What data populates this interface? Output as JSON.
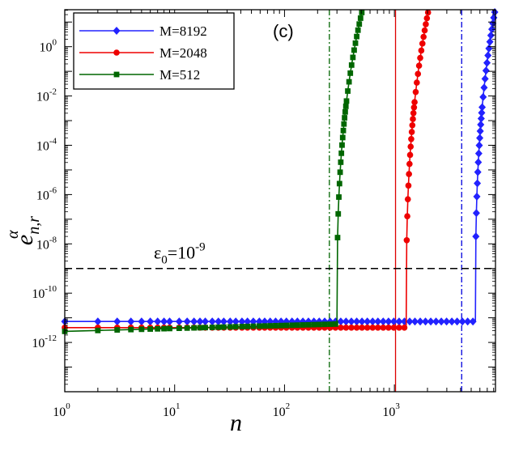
{
  "chart_data": {
    "type": "line",
    "panel_label": "(c)",
    "xlabel": "n",
    "ylabel": {
      "base": "e",
      "sub": "n,r",
      "sup": "α"
    },
    "xscale": "log",
    "yscale": "log",
    "xlim_exp": [
      0,
      3.92
    ],
    "ylim_exp": [
      -14,
      1.5
    ],
    "x_ticks": [
      {
        "base": "10",
        "exp": "0",
        "value": 1
      },
      {
        "base": "10",
        "exp": "1",
        "value": 10
      },
      {
        "base": "10",
        "exp": "2",
        "value": 100
      },
      {
        "base": "10",
        "exp": "3",
        "value": 1000
      }
    ],
    "y_ticks": [
      {
        "base": "10",
        "exp": "0",
        "value": 1
      },
      {
        "base": "10",
        "exp": "-2",
        "value": 0.01
      },
      {
        "base": "10",
        "exp": "-4",
        "value": 0.0001
      },
      {
        "base": "10",
        "exp": "-6",
        "value": 1e-06
      },
      {
        "base": "10",
        "exp": "-8",
        "value": 1e-08
      },
      {
        "base": "10",
        "exp": "-10",
        "value": 1e-10
      },
      {
        "base": "10",
        "exp": "-12",
        "value": 1e-12
      }
    ],
    "threshold": {
      "value": 1e-09,
      "label": {
        "base": "ε",
        "sub": "0",
        "eq": "=10",
        "exp": "-9"
      }
    },
    "vertical_lines": [
      {
        "x": 256,
        "color": "#006400",
        "style": "dashdot",
        "series": "M=512"
      },
      {
        "x": 1024,
        "color": "#dd0000",
        "style": "solid",
        "series": "M=2048"
      },
      {
        "x": 4096,
        "color": "#0000dd",
        "style": "dashdot",
        "series": "M=8192"
      }
    ],
    "series": [
      {
        "name": "M=8192",
        "color": "#2222ff",
        "marker": "diamond",
        "plateau_y_exp": -11.15,
        "plateau_slope": 0.0,
        "plateau_end": 5461,
        "rise_end_x": 8192,
        "rise_end_y_exp": 1.4
      },
      {
        "name": "M=2048",
        "color": "#ee0000",
        "marker": "circle",
        "plateau_y_exp": -11.4,
        "plateau_slope": 0.0,
        "plateau_end": 1280,
        "rise_end_x": 2048,
        "rise_end_y_exp": 1.5
      },
      {
        "name": "M=512",
        "color": "#006600",
        "marker": "square",
        "plateau_y_exp": -11.55,
        "plateau_slope": 0.12,
        "plateau_end": 300,
        "rise_end_x": 512,
        "rise_end_y_exp": 1.5
      }
    ],
    "legend": [
      "M=8192",
      "M=2048",
      "M=512"
    ],
    "legend_position": "top-left"
  }
}
